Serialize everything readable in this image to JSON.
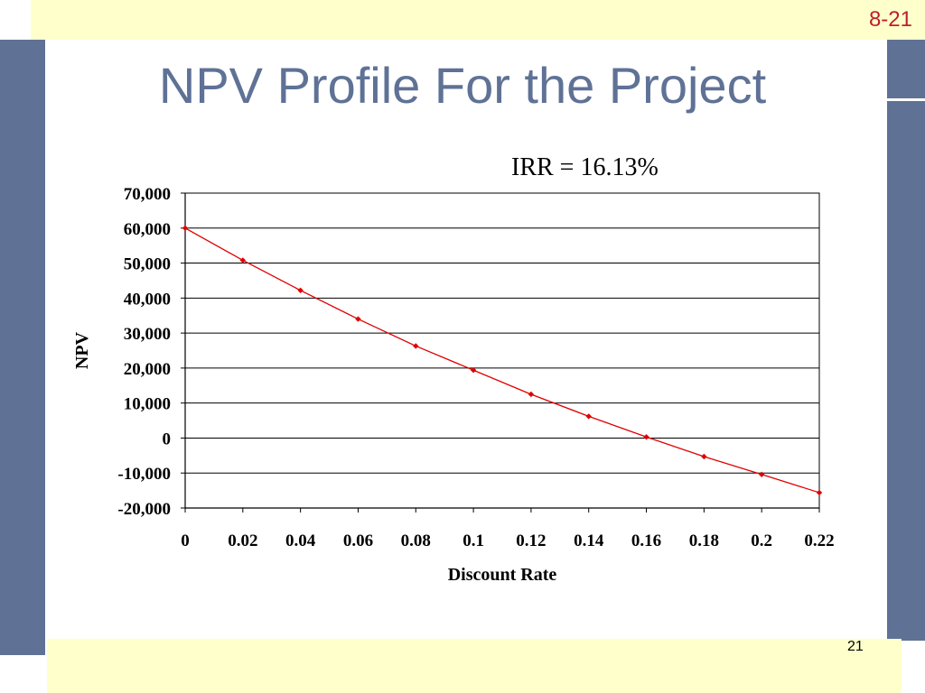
{
  "slide": {
    "code": "8-21",
    "title": "NPV Profile For the Project",
    "page_number": "21",
    "colors": {
      "frame_blue": "#5F7296",
      "frame_yellow": "#FFFFCC",
      "code_red": "#BE1E2D"
    }
  },
  "chart_data": {
    "type": "line",
    "annotation": "IRR = 16.13%",
    "xlabel": "Discount Rate",
    "ylabel": "NPV",
    "x_ticks": [
      "0",
      "0.02",
      "0.04",
      "0.06",
      "0.08",
      "0.1",
      "0.12",
      "0.14",
      "0.16",
      "0.18",
      "0.2",
      "0.22"
    ],
    "y_ticks": [
      "70,000",
      "60,000",
      "50,000",
      "40,000",
      "30,000",
      "20,000",
      "10,000",
      "0",
      "-10,000",
      "-20,000"
    ],
    "xlim": [
      0,
      0.22
    ],
    "ylim": [
      -20000,
      70000
    ],
    "y_tick_values": [
      70000,
      60000,
      50000,
      40000,
      30000,
      20000,
      10000,
      0,
      -10000,
      -20000
    ],
    "grid": "horizontal",
    "legend": "none",
    "series": [
      {
        "color": "#E00000",
        "x": [
          0,
          0.02,
          0.04,
          0.06,
          0.08,
          0.1,
          0.12,
          0.14,
          0.16,
          0.18,
          0.2,
          0.22
        ],
        "y": [
          60000,
          50800,
          42200,
          34000,
          26300,
          19400,
          12500,
          6200,
          300,
          -5300,
          -10400,
          -15600
        ]
      }
    ]
  }
}
